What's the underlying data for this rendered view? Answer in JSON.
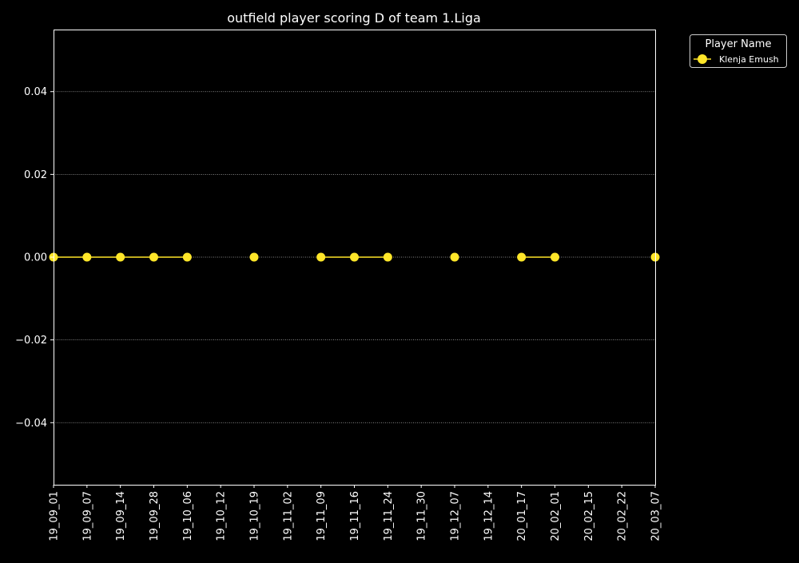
{
  "chart_data": {
    "type": "line",
    "title": "outfield player scoring D of team 1.Liga",
    "xlabel": "",
    "ylabel": "",
    "x_ticks": [
      "19_09_01",
      "19_09_07",
      "19_09_14",
      "19_09_28",
      "19_10_06",
      "19_10_12",
      "19_10_19",
      "19_11_02",
      "19_11_09",
      "19_11_16",
      "19_11_24",
      "19_11_30",
      "19_12_07",
      "19_12_14",
      "20_01_17",
      "20_02_01",
      "20_02_15",
      "20_02_22",
      "20_03_07"
    ],
    "y_ticks": [
      "0.04",
      "0.02",
      "0.00",
      "−0.02",
      "−0.04"
    ],
    "y_tick_values": [
      0.04,
      0.02,
      0.0,
      -0.02,
      -0.04
    ],
    "ylim": [
      -0.055,
      0.055
    ],
    "grid": "horizontal-dotted",
    "background": "#000000",
    "legend": {
      "title": "Player Name",
      "placement": "outside-top-right"
    },
    "series": [
      {
        "name": "Klenja Emush",
        "color": "#ffe629",
        "marker": "circle",
        "segments": [
          {
            "x": [
              "19_09_01",
              "19_09_07",
              "19_09_14",
              "19_09_28",
              "19_10_06"
            ],
            "y": [
              0,
              0,
              0,
              0,
              0
            ]
          },
          {
            "x": [
              "19_10_19"
            ],
            "y": [
              0
            ]
          },
          {
            "x": [
              "19_11_09",
              "19_11_16",
              "19_11_24"
            ],
            "y": [
              0,
              0,
              0
            ]
          },
          {
            "x": [
              "19_12_07"
            ],
            "y": [
              0
            ]
          },
          {
            "x": [
              "20_01_17",
              "20_02_01"
            ],
            "y": [
              0,
              0
            ]
          },
          {
            "x": [
              "20_03_07"
            ],
            "y": [
              0
            ]
          }
        ]
      }
    ]
  }
}
